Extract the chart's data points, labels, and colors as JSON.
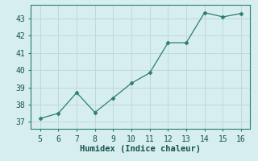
{
  "x": [
    5,
    6,
    7,
    8,
    9,
    10,
    11,
    12,
    13,
    14,
    15,
    16
  ],
  "y": [
    37.2,
    37.5,
    38.7,
    37.55,
    38.4,
    39.25,
    39.85,
    41.6,
    41.6,
    43.35,
    43.1,
    43.3
  ],
  "xlabel": "Humidex (Indice chaleur)",
  "xlim": [
    4.5,
    16.5
  ],
  "ylim": [
    36.6,
    43.8
  ],
  "yticks": [
    37,
    38,
    39,
    40,
    41,
    42,
    43
  ],
  "xticks": [
    5,
    6,
    7,
    8,
    9,
    10,
    11,
    12,
    13,
    14,
    15,
    16
  ],
  "line_color": "#2e7d6e",
  "marker": "D",
  "marker_size": 2.5,
  "bg_color": "#d6eeee",
  "grid_color": "#c0d8d8",
  "xlabel_fontsize": 7.5,
  "tick_fontsize": 7
}
